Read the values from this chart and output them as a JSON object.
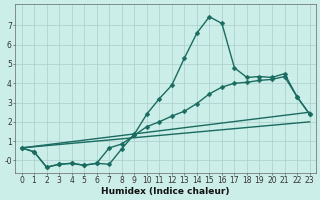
{
  "xlabel": "Humidex (Indice chaleur)",
  "bg_color": "#cceee8",
  "line_color": "#1a6b60",
  "grid_color": "#aacccc",
  "xlim": [
    -0.5,
    23.5
  ],
  "ylim": [
    -0.65,
    8.1
  ],
  "xticks": [
    0,
    1,
    2,
    3,
    4,
    5,
    6,
    7,
    8,
    9,
    10,
    11,
    12,
    13,
    14,
    15,
    16,
    17,
    18,
    19,
    20,
    21,
    22,
    23
  ],
  "yticks": [
    0,
    1,
    2,
    3,
    4,
    5,
    6,
    7
  ],
  "ytick_labels": [
    "-0",
    "1",
    "2",
    "3",
    "4",
    "5",
    "6",
    "7"
  ],
  "line1_x": [
    0,
    1,
    2,
    3,
    4,
    5,
    6,
    7,
    8,
    9,
    10,
    11,
    12,
    13,
    14,
    15,
    16,
    17,
    18,
    19,
    20,
    21,
    22,
    23
  ],
  "line1_y": [
    0.65,
    0.45,
    -0.35,
    -0.2,
    -0.15,
    -0.25,
    -0.15,
    -0.2,
    0.6,
    1.35,
    2.4,
    3.2,
    3.9,
    5.3,
    6.6,
    7.45,
    7.1,
    4.8,
    4.3,
    4.35,
    4.3,
    4.5,
    3.3,
    2.4
  ],
  "line2_x": [
    0,
    1,
    2,
    3,
    4,
    5,
    6,
    7,
    8,
    9,
    10,
    11,
    12,
    13,
    14,
    15,
    16,
    17,
    18,
    19,
    20,
    21,
    22,
    23
  ],
  "line2_y": [
    0.65,
    0.45,
    -0.35,
    -0.2,
    -0.15,
    -0.25,
    -0.15,
    0.65,
    0.85,
    1.3,
    1.75,
    2.0,
    2.3,
    2.55,
    2.95,
    3.45,
    3.8,
    4.0,
    4.05,
    4.15,
    4.2,
    4.35,
    3.3,
    2.4
  ],
  "line3_x": [
    0,
    23
  ],
  "line3_y": [
    0.65,
    2.5
  ],
  "line4_x": [
    0,
    23
  ],
  "line4_y": [
    0.65,
    2.0
  ],
  "marker_size": 2.5,
  "line_width": 1.0,
  "tick_fontsize": 5.5,
  "label_fontsize": 6.5
}
